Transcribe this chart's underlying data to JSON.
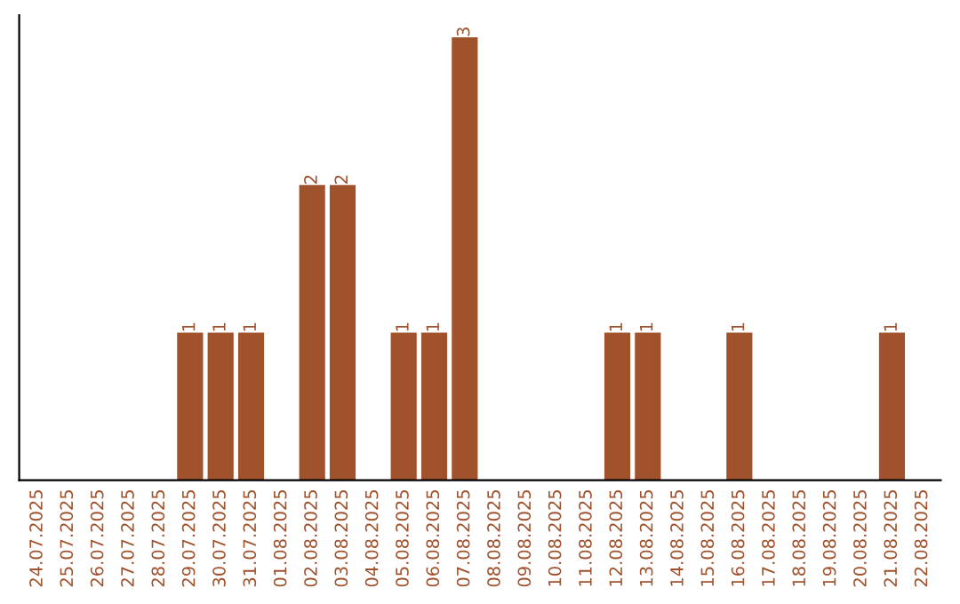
{
  "chart_data": {
    "type": "bar",
    "categories": [
      "24.07.2025",
      "25.07.2025",
      "26.07.2025",
      "27.07.2025",
      "28.07.2025",
      "29.07.2025",
      "30.07.2025",
      "31.07.2025",
      "01.08.2025",
      "02.08.2025",
      "03.08.2025",
      "04.08.2025",
      "05.08.2025",
      "06.08.2025",
      "07.08.2025",
      "08.08.2025",
      "09.08.2025",
      "10.08.2025",
      "11.08.2025",
      "12.08.2025",
      "13.08.2025",
      "14.08.2025",
      "15.08.2025",
      "16.08.2025",
      "17.08.2025",
      "18.08.2025",
      "19.08.2025",
      "20.08.2025",
      "21.08.2025",
      "22.08.2025"
    ],
    "values": [
      0,
      0,
      0,
      0,
      0,
      1,
      1,
      1,
      0,
      2,
      2,
      0,
      1,
      1,
      3,
      0,
      0,
      0,
      0,
      1,
      1,
      0,
      0,
      1,
      0,
      0,
      0,
      0,
      1,
      0
    ],
    "value_labels": [
      null,
      null,
      null,
      null,
      null,
      "1",
      "1",
      "1",
      null,
      "2",
      "2",
      null,
      "1",
      "1",
      "3",
      null,
      null,
      null,
      null,
      "1",
      "1",
      null,
      null,
      "1",
      null,
      null,
      null,
      null,
      "1",
      null
    ],
    "color": "#a0522d",
    "tick_labels": "x",
    "grid": false
  }
}
